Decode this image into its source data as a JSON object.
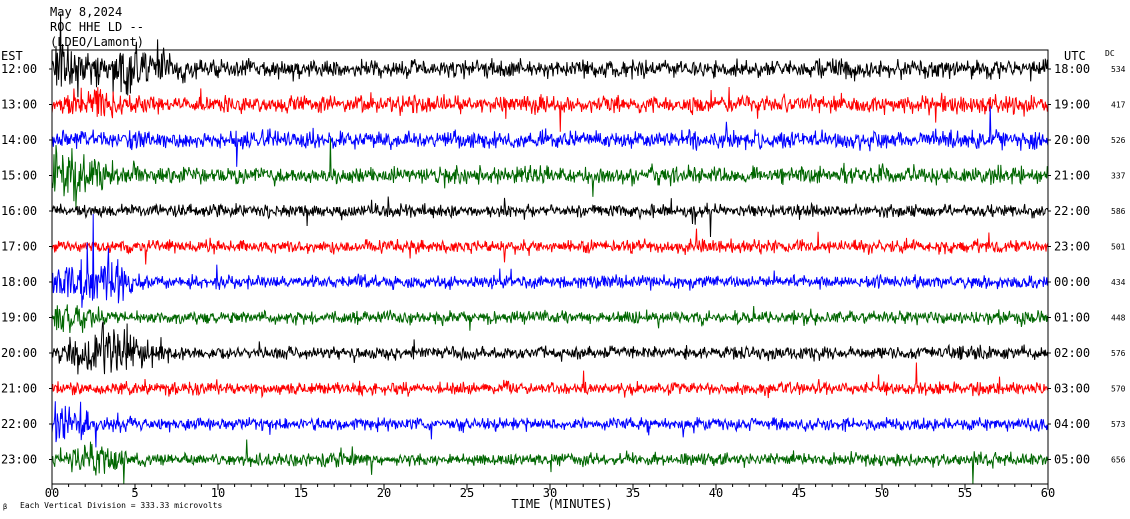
{
  "header": {
    "date": "May 8,2024",
    "station": "ROC HHE LD --",
    "network": "(LDEO/Lamont)"
  },
  "axis_labels": {
    "left_timezone": "EST",
    "right_timezone": "UTC",
    "dc_header": "DC",
    "xlabel": "TIME (MINUTES)",
    "scale_note": "Each Vertical Division =  333.33 microvolts"
  },
  "colors": {
    "black": "#000000",
    "red": "#ff0000",
    "blue": "#0000ff",
    "green": "#006600"
  },
  "chart_data": {
    "type": "line",
    "title": "May 8,2024",
    "xlabel": "TIME (MINUTES)",
    "xlim": [
      0,
      60
    ],
    "x_ticks": [
      "00",
      "5",
      "10",
      "15",
      "20",
      "25",
      "30",
      "35",
      "40",
      "45",
      "50",
      "55",
      "60"
    ],
    "rows": [
      {
        "est": "12:00",
        "utc": "18:00",
        "dc": "534",
        "color": "black"
      },
      {
        "est": "13:00",
        "utc": "19:00",
        "dc": "417",
        "color": "red"
      },
      {
        "est": "14:00",
        "utc": "20:00",
        "dc": "526",
        "color": "blue"
      },
      {
        "est": "15:00",
        "utc": "21:00",
        "dc": "337",
        "color": "green"
      },
      {
        "est": "16:00",
        "utc": "22:00",
        "dc": "586",
        "color": "black"
      },
      {
        "est": "17:00",
        "utc": "23:00",
        "dc": "501",
        "color": "red"
      },
      {
        "est": "18:00",
        "utc": "00:00",
        "dc": "434",
        "color": "blue"
      },
      {
        "est": "19:00",
        "utc": "01:00",
        "dc": "448",
        "color": "green"
      },
      {
        "est": "20:00",
        "utc": "02:00",
        "dc": "576",
        "color": "black"
      },
      {
        "est": "21:00",
        "utc": "03:00",
        "dc": "570",
        "color": "red"
      },
      {
        "est": "22:00",
        "utc": "04:00",
        "dc": "573",
        "color": "blue"
      },
      {
        "est": "23:00",
        "utc": "05:00",
        "dc": "656",
        "color": "green"
      }
    ]
  }
}
